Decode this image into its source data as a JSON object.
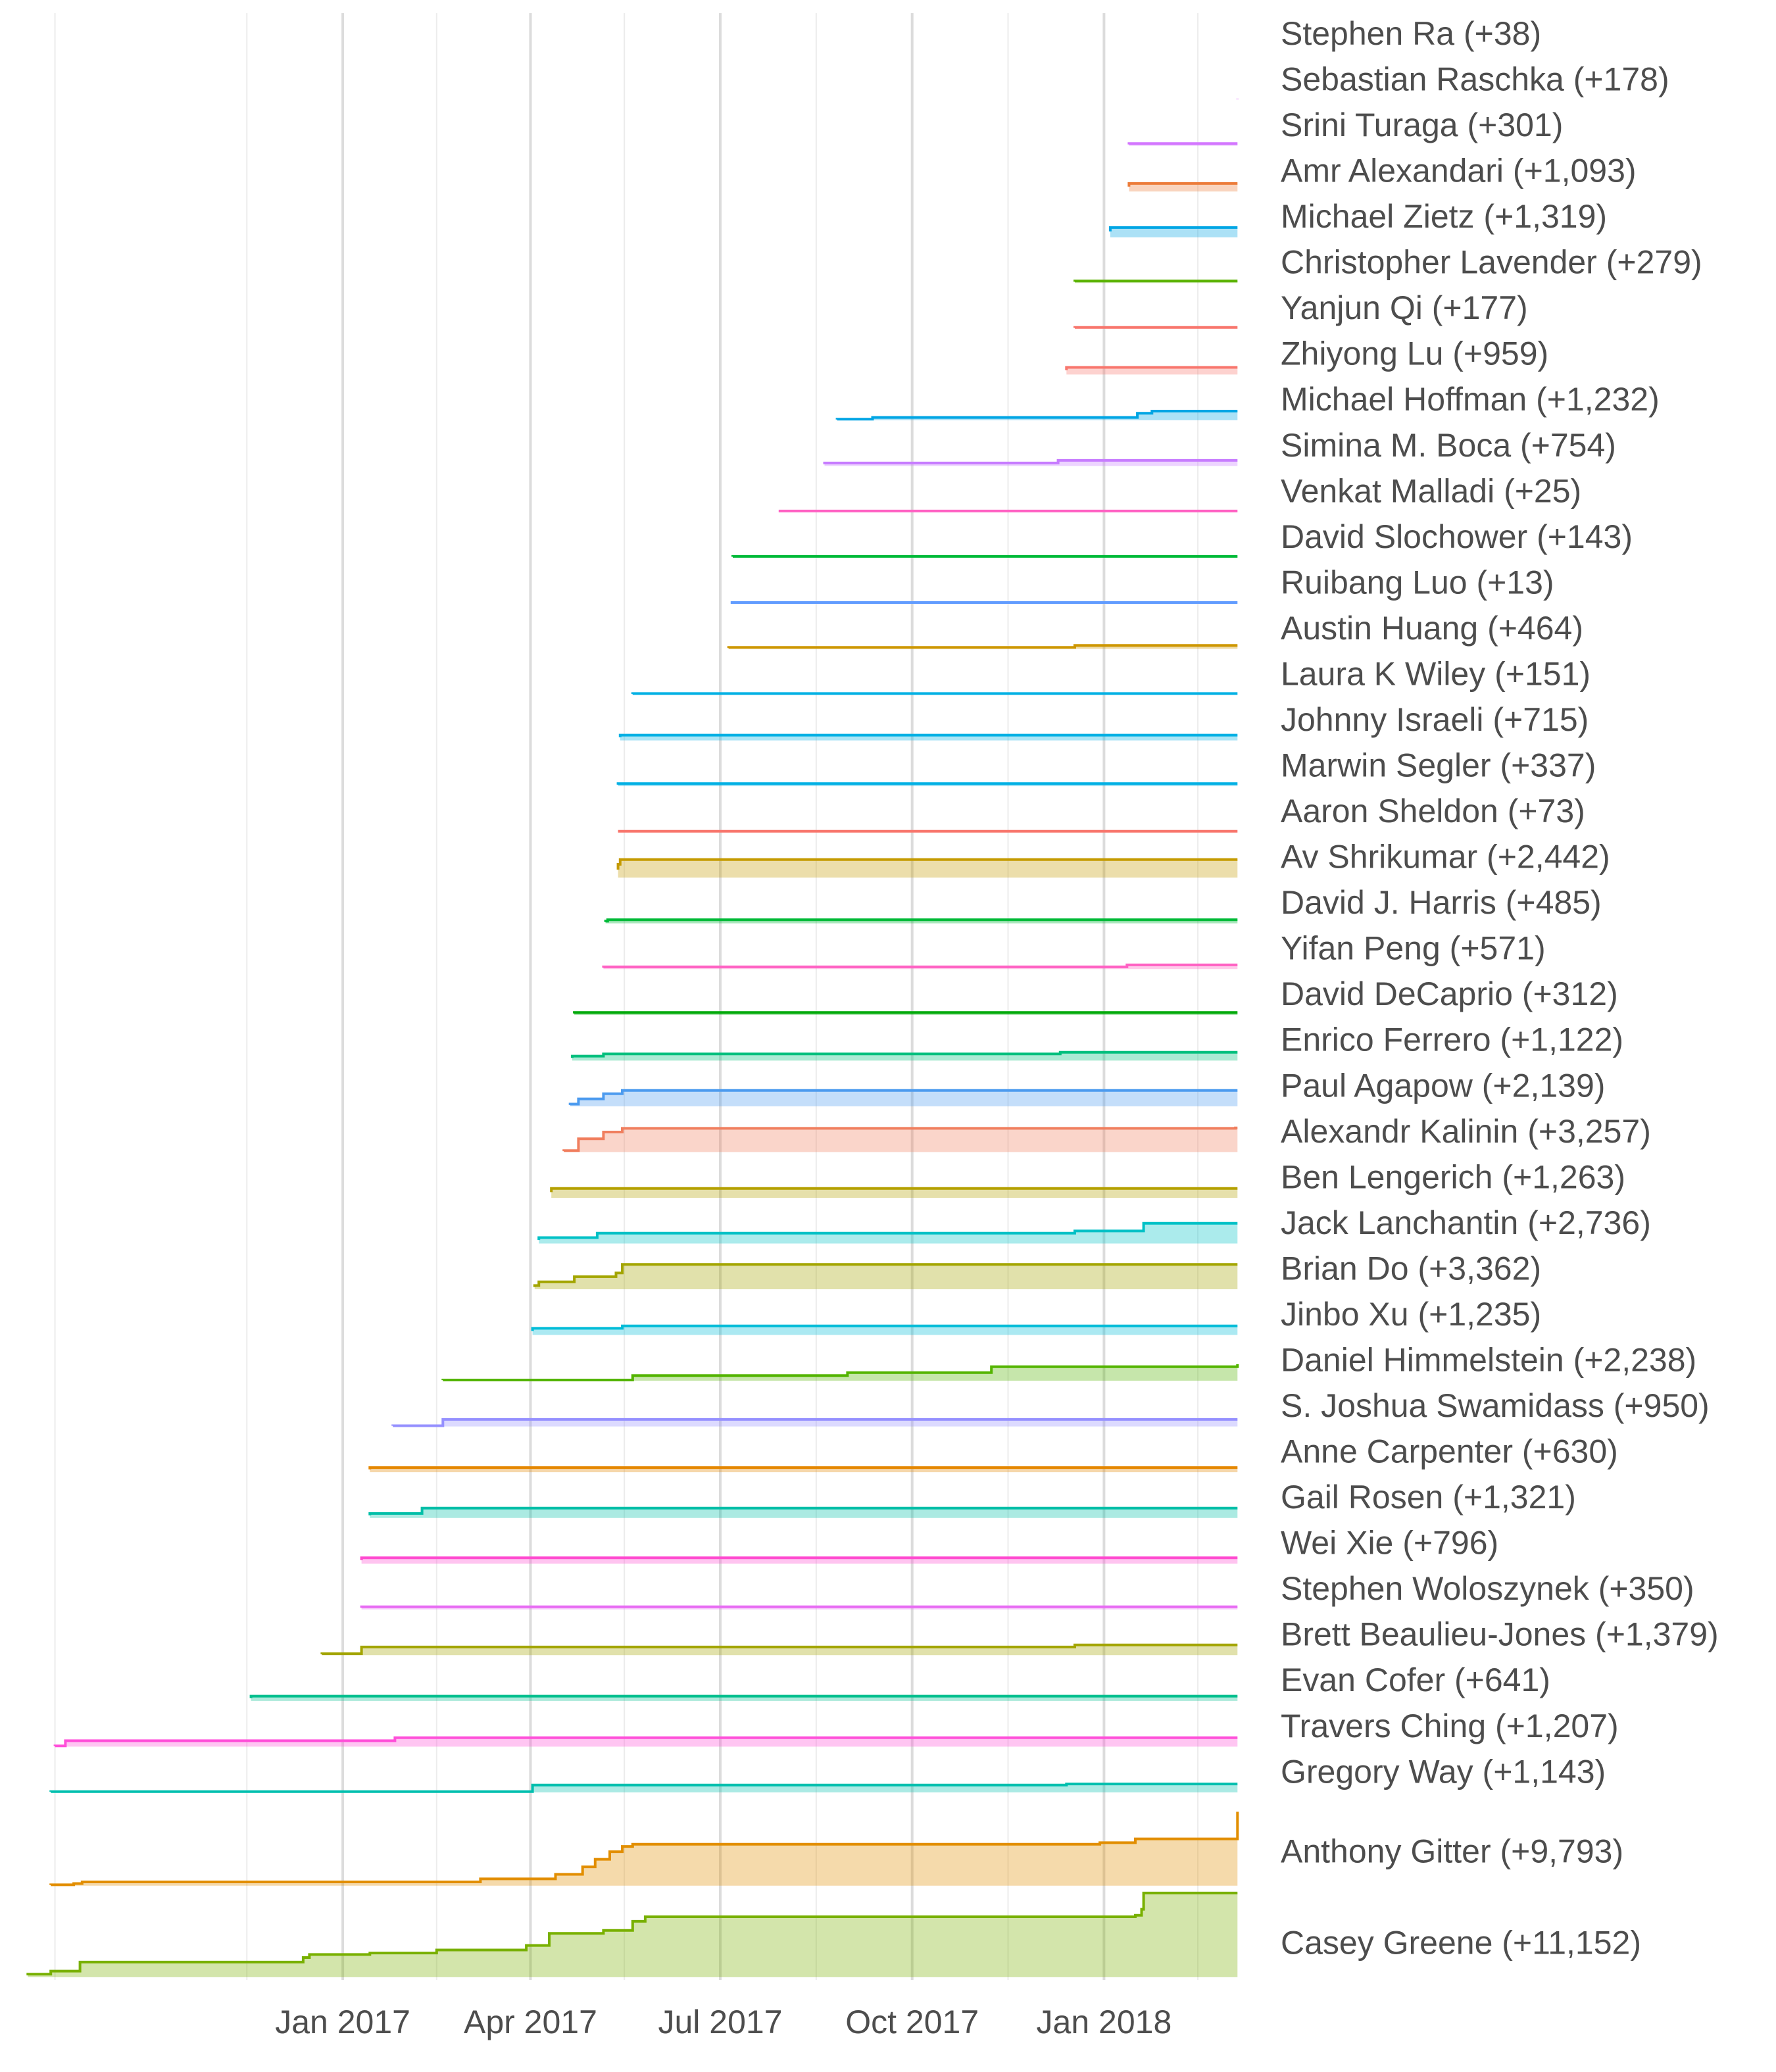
{
  "chart_data": {
    "type": "area",
    "description": "Cumulative contributions per author over time (step lines with filled ribbons)",
    "x_axis": {
      "range": [
        "2016-08-01",
        "2018-03-10"
      ],
      "tick_labels": [
        "Jan 2017",
        "Apr 2017",
        "Jul 2017",
        "Oct 2017",
        "Jan 2018"
      ],
      "tick_dates": [
        "2017-01-01",
        "2017-04-01",
        "2017-07-01",
        "2017-10-01",
        "2018-01-01"
      ],
      "minor_grid_dates": [
        "2016-08-16",
        "2016-11-16",
        "2017-02-15",
        "2017-05-16",
        "2017-08-16",
        "2017-11-16",
        "2018-02-15"
      ]
    },
    "end_date": "2018-03-06",
    "grid": true,
    "legend": "none (direct labels at right)",
    "series": [
      {
        "name": "Stephen Ra",
        "label": "Stephen Ra (+38)",
        "total": 38,
        "color": "#FF61C3",
        "steps": [
          [
            "2018-03-06",
            38
          ]
        ]
      },
      {
        "name": "Sebastian Raschka",
        "label": "Sebastian Raschka (+178)",
        "total": 178,
        "color": "#DB72FB",
        "steps": [
          [
            "2018-03-06",
            178
          ]
        ]
      },
      {
        "name": "Srini Turaga",
        "label": "Srini Turaga (+301)",
        "total": 301,
        "color": "#D376FF",
        "steps": [
          [
            "2018-01-13",
            301
          ]
        ]
      },
      {
        "name": "Amr Alexandari",
        "label": "Amr Alexandari (+1,093)",
        "total": 1093,
        "color": "#EC7C3A",
        "steps": [
          [
            "2018-01-13",
            1093
          ]
        ]
      },
      {
        "name": "Michael Zietz",
        "label": "Michael Zietz (+1,319)",
        "total": 1319,
        "color": "#00A5E4",
        "steps": [
          [
            "2018-01-04",
            1319
          ]
        ]
      },
      {
        "name": "Christopher Lavender",
        "label": "Christopher Lavender (+279)",
        "total": 279,
        "color": "#5BB300",
        "steps": [
          [
            "2017-12-18",
            279
          ]
        ]
      },
      {
        "name": "Yanjun Qi",
        "label": "Yanjun Qi (+177)",
        "total": 177,
        "color": "#F8766D",
        "steps": [
          [
            "2017-12-18",
            177
          ]
        ]
      },
      {
        "name": "Zhiyong Lu",
        "label": "Zhiyong Lu (+959)",
        "total": 959,
        "color": "#F8766D",
        "steps": [
          [
            "2017-12-14",
            959
          ]
        ]
      },
      {
        "name": "Michael Hoffman",
        "label": "Michael Hoffman (+1,232)",
        "total": 1232,
        "color": "#00A5E4",
        "steps": [
          [
            "2017-08-26",
            150
          ],
          [
            "2017-09-12",
            380
          ],
          [
            "2018-01-17",
            950
          ],
          [
            "2018-01-24",
            1232
          ]
        ]
      },
      {
        "name": "Simina M. Boca",
        "label": "Simina M. Boca (+754)",
        "total": 754,
        "color": "#C77CFF",
        "steps": [
          [
            "2017-08-20",
            400
          ],
          [
            "2017-12-10",
            754
          ]
        ]
      },
      {
        "name": "Venkat Malladi",
        "label": "Venkat Malladi (+25)",
        "total": 25,
        "color": "#FF61C3",
        "steps": [
          [
            "2017-07-29",
            25
          ]
        ]
      },
      {
        "name": "David Slochower",
        "label": "David Slochower (+143)",
        "total": 143,
        "color": "#00BA38",
        "steps": [
          [
            "2017-07-07",
            143
          ]
        ]
      },
      {
        "name": "Ruibang Luo",
        "label": "Ruibang Luo (+13)",
        "total": 13,
        "color": "#619CFF",
        "steps": [
          [
            "2017-07-06",
            13
          ]
        ]
      },
      {
        "name": "Austin Huang",
        "label": "Austin Huang (+464)",
        "total": 464,
        "color": "#CD9600",
        "steps": [
          [
            "2017-07-05",
            200
          ],
          [
            "2017-12-18",
            464
          ]
        ]
      },
      {
        "name": "Laura K Wiley",
        "label": "Laura K Wiley (+151)",
        "total": 151,
        "color": "#00B0E4",
        "steps": [
          [
            "2017-05-20",
            151
          ]
        ]
      },
      {
        "name": "Johnny Israeli",
        "label": "Johnny Israeli (+715)",
        "total": 715,
        "color": "#00B0E4",
        "steps": [
          [
            "2017-05-14",
            715
          ]
        ]
      },
      {
        "name": "Marwin Segler",
        "label": "Marwin Segler (+337)",
        "total": 337,
        "color": "#00B0E4",
        "steps": [
          [
            "2017-05-13",
            337
          ]
        ]
      },
      {
        "name": "Aaron Sheldon",
        "label": "Aaron Sheldon (+73)",
        "total": 73,
        "color": "#F8766D",
        "steps": [
          [
            "2017-05-13",
            73
          ]
        ]
      },
      {
        "name": "Av Shrikumar",
        "label": "Av Shrikumar (+2,442)",
        "total": 2442,
        "color": "#C49A00",
        "steps": [
          [
            "2017-05-13",
            1800
          ],
          [
            "2017-05-14",
            2442
          ]
        ]
      },
      {
        "name": "David J. Harris",
        "label": "David J. Harris (+485)",
        "total": 485,
        "color": "#00BA38",
        "steps": [
          [
            "2017-05-07",
            300
          ],
          [
            "2017-05-08",
            485
          ]
        ]
      },
      {
        "name": "Yifan Peng",
        "label": "Yifan Peng (+571)",
        "total": 571,
        "color": "#FF61C3",
        "steps": [
          [
            "2017-05-06",
            300
          ],
          [
            "2018-01-12",
            571
          ]
        ]
      },
      {
        "name": "David DeCaprio",
        "label": "David DeCaprio (+312)",
        "total": 312,
        "color": "#00A908",
        "steps": [
          [
            "2017-04-22",
            312
          ]
        ]
      },
      {
        "name": "Enrico Ferrero",
        "label": "Enrico Ferrero (+1,122)",
        "total": 1122,
        "color": "#00BF7D",
        "steps": [
          [
            "2017-04-21",
            600
          ],
          [
            "2017-05-06",
            900
          ],
          [
            "2017-12-11",
            1122
          ]
        ]
      },
      {
        "name": "Paul Agapow",
        "label": "Paul Agapow (+2,139)",
        "total": 2139,
        "color": "#4C9BEF",
        "steps": [
          [
            "2017-04-20",
            300
          ],
          [
            "2017-04-24",
            1000
          ],
          [
            "2017-05-06",
            1700
          ],
          [
            "2017-05-15",
            2139
          ]
        ]
      },
      {
        "name": "Alexandr Kalinin",
        "label": "Alexandr Kalinin (+3,257)",
        "total": 3257,
        "color": "#F07E5E",
        "steps": [
          [
            "2017-04-17",
            200
          ],
          [
            "2017-04-24",
            1800
          ],
          [
            "2017-05-06",
            2700
          ],
          [
            "2017-05-15",
            3200
          ],
          [
            "2018-03-05",
            3257
          ]
        ]
      },
      {
        "name": "Ben Lengerich",
        "label": "Ben Lengerich (+1,263)",
        "total": 1263,
        "color": "#B4A000",
        "steps": [
          [
            "2017-04-11",
            1263
          ]
        ]
      },
      {
        "name": "Jack Lanchantin",
        "label": "Jack Lanchantin (+2,736)",
        "total": 2736,
        "color": "#00C1C6",
        "steps": [
          [
            "2017-04-05",
            800
          ],
          [
            "2017-05-03",
            1400
          ],
          [
            "2017-12-18",
            1700
          ],
          [
            "2018-01-20",
            2736
          ]
        ]
      },
      {
        "name": "Brian Do",
        "label": "Brian Do (+3,362)",
        "total": 3362,
        "color": "#A3A500",
        "steps": [
          [
            "2017-04-03",
            500
          ],
          [
            "2017-04-05",
            1000
          ],
          [
            "2017-04-22",
            1700
          ],
          [
            "2017-05-12",
            2200
          ],
          [
            "2017-05-15",
            3362
          ]
        ]
      },
      {
        "name": "Jinbo Xu",
        "label": "Jinbo Xu (+1,235)",
        "total": 1235,
        "color": "#00BCD8",
        "steps": [
          [
            "2017-04-02",
            900
          ],
          [
            "2017-05-15",
            1235
          ]
        ]
      },
      {
        "name": "Daniel Himmelstein",
        "label": "Daniel Himmelstein (+2,238)",
        "total": 2238,
        "color": "#53B400",
        "steps": [
          [
            "2017-02-18",
            100
          ],
          [
            "2017-05-20",
            700
          ],
          [
            "2017-08-31",
            1100
          ],
          [
            "2017-11-08",
            1900
          ],
          [
            "2018-03-06",
            2238
          ]
        ]
      },
      {
        "name": "S. Joshua Swamidass",
        "label": "S. Joshua Swamidass (+950)",
        "total": 950,
        "color": "#9590FF",
        "steps": [
          [
            "2017-01-25",
            100
          ],
          [
            "2017-02-18",
            950
          ]
        ]
      },
      {
        "name": "Anne Carpenter",
        "label": "Anne Carpenter (+630)",
        "total": 630,
        "color": "#E58700",
        "steps": [
          [
            "2017-01-14",
            630
          ]
        ]
      },
      {
        "name": "Gail Rosen",
        "label": "Gail Rosen (+1,321)",
        "total": 1321,
        "color": "#00BFA8",
        "steps": [
          [
            "2017-01-14",
            600
          ],
          [
            "2017-02-08",
            1321
          ]
        ]
      },
      {
        "name": "Wei Xie",
        "label": "Wei Xie (+796)",
        "total": 796,
        "color": "#FF4BD0",
        "steps": [
          [
            "2017-01-10",
            796
          ]
        ]
      },
      {
        "name": "Stephen Woloszynek",
        "label": "Stephen Woloszynek (+350)",
        "total": 350,
        "color": "#E76BF3",
        "steps": [
          [
            "2017-01-10",
            350
          ]
        ]
      },
      {
        "name": "Brett Beaulieu-Jones",
        "label": "Brett Beaulieu-Jones (+1,379)",
        "total": 1379,
        "color": "#A3A500",
        "steps": [
          [
            "2016-12-22",
            200
          ],
          [
            "2017-01-10",
            1100
          ],
          [
            "2017-12-18",
            1379
          ]
        ]
      },
      {
        "name": "Evan Cofer",
        "label": "Evan Cofer (+641)",
        "total": 641,
        "color": "#00BF8E",
        "steps": [
          [
            "2016-11-18",
            641
          ]
        ]
      },
      {
        "name": "Travers Ching",
        "label": "Travers Ching (+1,207)",
        "total": 1207,
        "color": "#FF4FD9",
        "steps": [
          [
            "2016-08-16",
            100
          ],
          [
            "2016-08-21",
            800
          ],
          [
            "2017-01-26",
            1207
          ]
        ]
      },
      {
        "name": "Gregory Way",
        "label": "Gregory Way (+1,143)",
        "total": 1143,
        "color": "#00BFAE",
        "steps": [
          [
            "2016-08-14",
            100
          ],
          [
            "2017-04-02",
            1000
          ],
          [
            "2017-12-14",
            1143
          ]
        ]
      },
      {
        "name": "Anthony Gitter",
        "label": "Anthony Gitter (+9,793)",
        "total": 9793,
        "color": "#E28E00",
        "steps": [
          [
            "2016-08-14",
            120
          ],
          [
            "2016-08-25",
            280
          ],
          [
            "2016-08-29",
            500
          ],
          [
            "2017-03-08",
            900
          ],
          [
            "2017-04-13",
            1500
          ],
          [
            "2017-04-26",
            2500
          ],
          [
            "2017-05-02",
            3500
          ],
          [
            "2017-05-09",
            4500
          ],
          [
            "2017-05-15",
            5200
          ],
          [
            "2017-05-20",
            5500
          ],
          [
            "2017-12-30",
            5700
          ],
          [
            "2018-01-16",
            6200
          ],
          [
            "2018-03-06",
            9793
          ]
        ]
      },
      {
        "name": "Casey Greene",
        "label": "Casey Greene (+11,152)",
        "total": 11152,
        "color": "#78B000",
        "steps": [
          [
            "2016-08-03",
            400
          ],
          [
            "2016-08-14",
            800
          ],
          [
            "2016-08-28",
            2000
          ],
          [
            "2016-12-13",
            2600
          ],
          [
            "2016-12-16",
            3000
          ],
          [
            "2017-01-14",
            3200
          ],
          [
            "2017-02-15",
            3600
          ],
          [
            "2017-03-30",
            4200
          ],
          [
            "2017-04-10",
            5800
          ],
          [
            "2017-05-06",
            6200
          ],
          [
            "2017-05-20",
            7400
          ],
          [
            "2017-05-26",
            8000
          ],
          [
            "2018-01-16",
            8200
          ],
          [
            "2018-01-19",
            9000
          ],
          [
            "2018-01-20",
            11152
          ]
        ]
      }
    ]
  }
}
